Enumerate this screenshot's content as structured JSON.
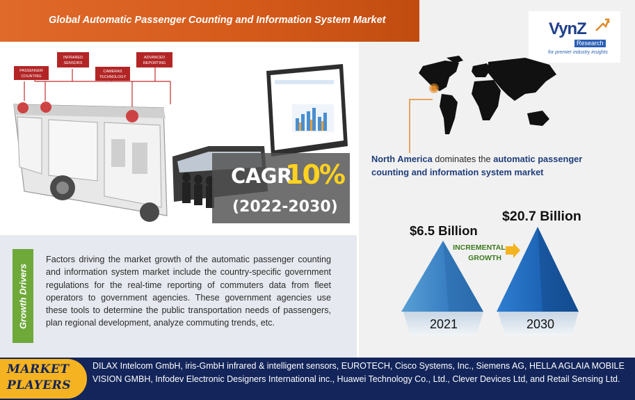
{
  "header": {
    "title": "Global Automatic Passenger Counting and Information System Market"
  },
  "illustration": {
    "labels": [
      "PASSENGER COUNTING",
      "INFRARED SENSORS",
      "CAMERAS TECHNOLOGY",
      "ADVANCED REPORTING"
    ]
  },
  "cagr": {
    "label": "CAGR",
    "value": "10%",
    "period": "(2022-2030)"
  },
  "growth": {
    "tab_label": "Growth Drivers",
    "text": "Factors driving the market growth of the automatic passenger counting and information system market include the country-specific government regulations for the real-time reporting of commuters data from fleet operators to government agencies. These government agencies use these tools to determine the public transportation needs of passengers, plan regional development, analyze commuting trends, etc."
  },
  "logo": {
    "brand": "VynZ",
    "sub": "Research",
    "tagline": "for premier industry insights"
  },
  "region": {
    "region_name": "North America",
    "mid_text": " dominates the ",
    "market_name": "automatic passenger counting and information system market"
  },
  "market_values": {
    "value_2021": "$6.5 Billion",
    "value_2030": "$20.7 Billion",
    "incremental_line1": "INCREMENTAL",
    "incremental_line2": "GROWTH",
    "year_2021": "2021",
    "year_2030": "2030"
  },
  "players": {
    "label_line1": "MARKET",
    "label_line2": "PLAYERS",
    "text": "DILAX Intelcom GmbH, iris-GmbH infrared & intelligent sensors, EUROTECH, Cisco Systems, Inc., Siemens AG, HELLA AGLAIA MOBILE VISION GMBH, Infodev Electronic Designers International inc., Huawei Technology Co., Ltd., Clever Devices Ltd, and Retail Sensing Ltd."
  },
  "colors": {
    "title_orange": "#d45a1a",
    "navy": "#13255a",
    "gold": "#f5b321",
    "green": "#6ea93a",
    "blue": "#2a6fb8"
  }
}
